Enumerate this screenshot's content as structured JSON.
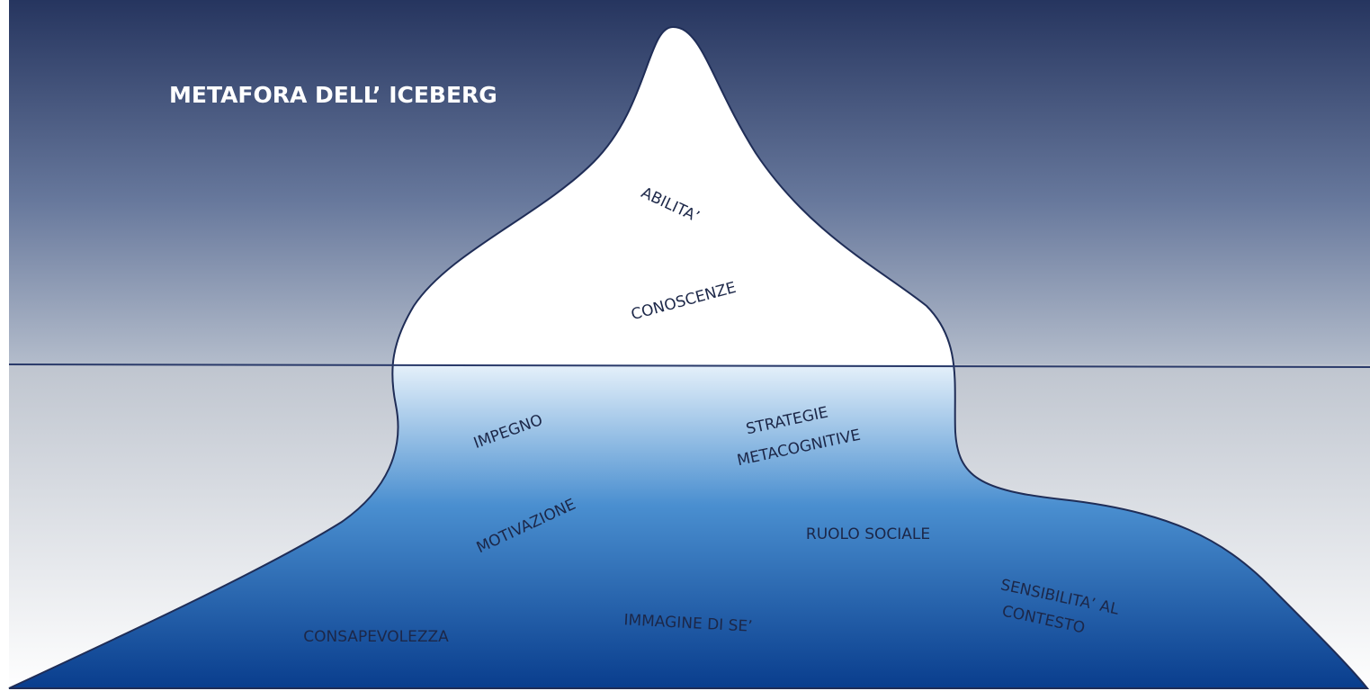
{
  "title": "METAFORA DELL’ ICEBERG",
  "above_water": [
    "ABILITA’",
    "CONOSCENZE"
  ],
  "below_water": [
    {
      "lines": [
        "IMPEGNO"
      ]
    },
    {
      "lines": [
        "STRATEGIE",
        "METACOGNITIVE"
      ]
    },
    {
      "lines": [
        "MOTIVAZIONE"
      ]
    },
    {
      "lines": [
        "RUOLO SOCIALE"
      ]
    },
    {
      "lines": [
        "SENSIBILITA’ AL",
        "CONTESTO"
      ]
    },
    {
      "lines": [
        "IMMAGINE DI SE’"
      ]
    },
    {
      "lines": [
        "CONSAPEVOLEZZA"
      ]
    }
  ]
}
